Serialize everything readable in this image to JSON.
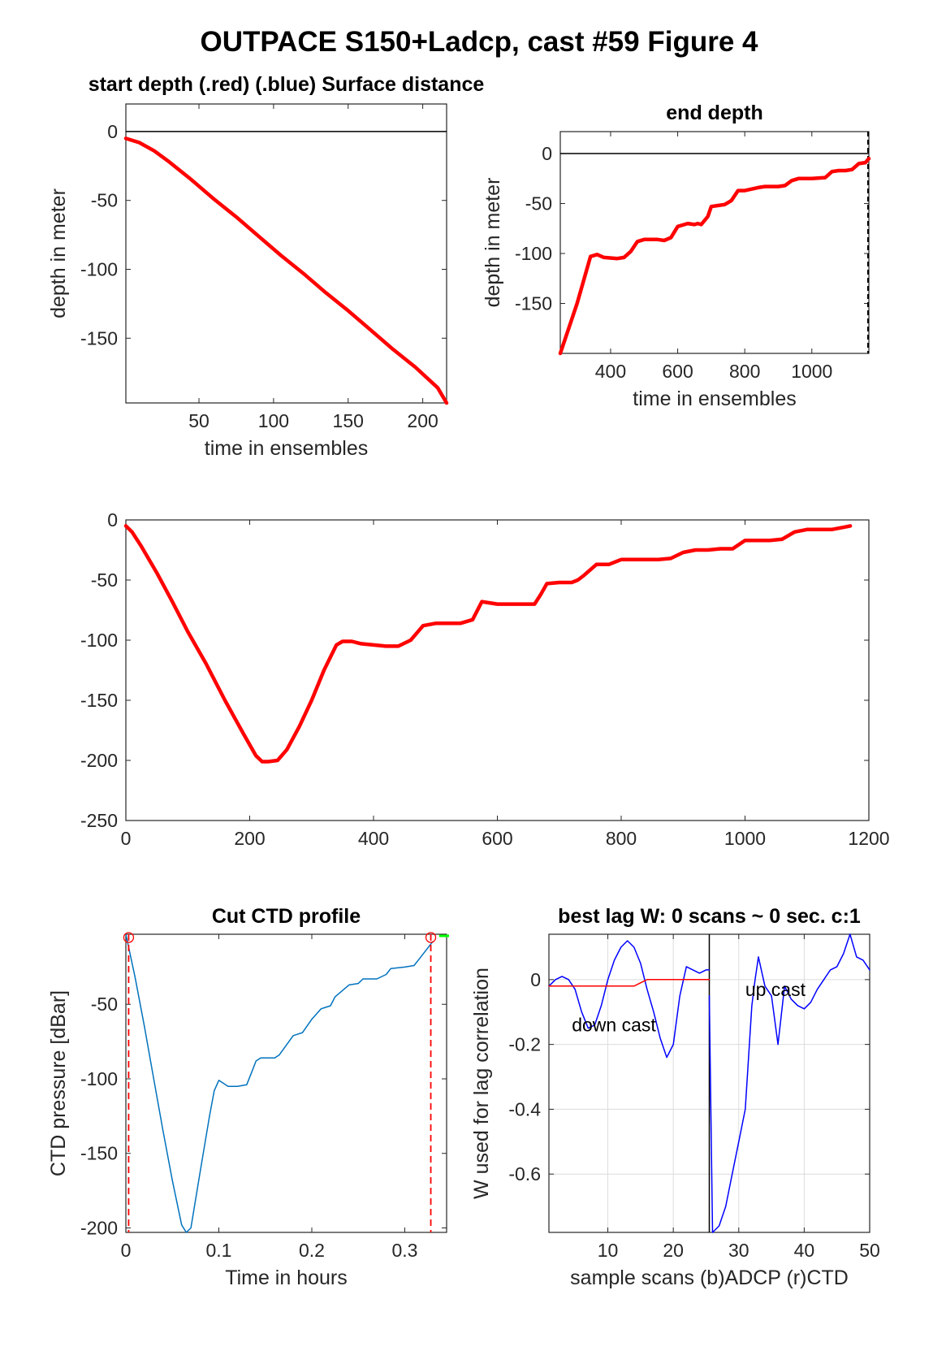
{
  "figure": {
    "title": "OUTPACE S150+Ladcp, cast #59   Figure 4"
  },
  "colors": {
    "red": "#ff0000",
    "blue": "#0000ff",
    "ctd": "#0072bd",
    "green": "#00ff00",
    "grid": "#dcdcdc"
  },
  "chart_data": [
    {
      "id": "start",
      "type": "line",
      "title": "start depth (.red) (.blue) Surface distance",
      "xlabel": "time in ensembles",
      "ylabel": "depth in meter",
      "xlim": [
        1,
        216
      ],
      "ylim": [
        -197,
        20
      ],
      "xticks": [
        50,
        100,
        150,
        200
      ],
      "yticks": [
        0,
        -50,
        -100,
        -150
      ],
      "grid": false,
      "ref_line_y": 0,
      "series": [
        {
          "color": "red",
          "x": [
            1,
            10,
            20,
            30,
            45,
            60,
            75,
            90,
            105,
            120,
            135,
            150,
            165,
            180,
            195,
            210,
            216
          ],
          "y": [
            -5,
            -8,
            -14,
            -22,
            -35,
            -49,
            -62,
            -76,
            -90,
            -103,
            -117,
            -130,
            -144,
            -158,
            -171,
            -186,
            -197
          ]
        }
      ]
    },
    {
      "id": "end",
      "type": "line",
      "title": "end depth",
      "xlabel": "time in ensembles",
      "ylabel": "depth in meter",
      "xlim": [
        250,
        1170
      ],
      "ylim": [
        -200,
        22
      ],
      "xticks": [
        400,
        600,
        800,
        1000
      ],
      "yticks": [
        0,
        -50,
        -100,
        -150
      ],
      "grid": false,
      "ref_line_y": 0,
      "right_dashed": true,
      "series": [
        {
          "color": "red",
          "x": [
            250,
            300,
            340,
            360,
            380,
            420,
            440,
            460,
            480,
            500,
            520,
            540,
            560,
            580,
            600,
            630,
            650,
            660,
            670,
            690,
            700,
            720,
            740,
            760,
            780,
            800,
            840,
            860,
            880,
            900,
            920,
            940,
            960,
            980,
            1000,
            1040,
            1060,
            1080,
            1100,
            1120,
            1140,
            1160,
            1170
          ],
          "y": [
            -200,
            -150,
            -103,
            -101,
            -104,
            -105,
            -104,
            -98,
            -88,
            -86,
            -86,
            -86,
            -87,
            -84,
            -73,
            -70,
            -71,
            -70,
            -71,
            -63,
            -53,
            -52,
            -51,
            -47,
            -37,
            -37,
            -34,
            -33,
            -33,
            -33,
            -32,
            -27,
            -25,
            -25,
            -25,
            -24,
            -18,
            -17,
            -17,
            -16,
            -10,
            -9,
            -5
          ]
        }
      ]
    },
    {
      "id": "full",
      "type": "line",
      "title": "",
      "xlabel": "",
      "ylabel": "",
      "xlim": [
        0,
        1200
      ],
      "ylim": [
        -250,
        0
      ],
      "xticks": [
        0,
        200,
        400,
        600,
        800,
        1000,
        1200
      ],
      "yticks": [
        0,
        -50,
        -100,
        -150,
        -200,
        -250
      ],
      "grid": false,
      "series": [
        {
          "color": "red",
          "x": [
            0,
            10,
            25,
            50,
            75,
            100,
            130,
            160,
            190,
            210,
            220,
            230,
            245,
            260,
            280,
            300,
            320,
            340,
            350,
            365,
            380,
            400,
            420,
            440,
            460,
            480,
            500,
            520,
            540,
            560,
            575,
            600,
            620,
            640,
            660,
            670,
            680,
            700,
            720,
            730,
            740,
            760,
            780,
            800,
            840,
            860,
            880,
            900,
            920,
            940,
            960,
            980,
            1000,
            1040,
            1060,
            1080,
            1100,
            1120,
            1140,
            1160,
            1170
          ],
          "y": [
            -5,
            -10,
            -22,
            -44,
            -68,
            -93,
            -120,
            -150,
            -178,
            -196,
            -201,
            -201,
            -200,
            -191,
            -172,
            -150,
            -125,
            -104,
            -101,
            -101,
            -103,
            -104,
            -105,
            -105,
            -100,
            -88,
            -86,
            -86,
            -86,
            -83,
            -68,
            -70,
            -70,
            -70,
            -70,
            -62,
            -53,
            -52,
            -52,
            -50,
            -46,
            -37,
            -37,
            -33,
            -33,
            -33,
            -32,
            -27,
            -25,
            -25,
            -24,
            -24,
            -17,
            -17,
            -16,
            -10,
            -8,
            -8,
            -8,
            -6,
            -5
          ]
        }
      ]
    },
    {
      "id": "ctd",
      "type": "line",
      "title": "Cut CTD profile",
      "xlabel": "Time in hours",
      "ylabel": "CTD pressure [dBar]",
      "xlim": [
        0,
        0.345
      ],
      "ylim": [
        -203,
        -3
      ],
      "xticks": [
        0,
        0.1,
        0.2,
        0.3
      ],
      "xtick_labels": [
        "0",
        "0.1",
        "0.2",
        "0.3"
      ],
      "yticks": [
        -50,
        -100,
        -150,
        -200
      ],
      "grid": false,
      "cut_start_x": 0.003,
      "cut_end_x": 0.328,
      "series": [
        {
          "color": "ctd",
          "x": [
            0,
            0.01,
            0.02,
            0.03,
            0.04,
            0.05,
            0.06,
            0.065,
            0.07,
            0.08,
            0.09,
            0.095,
            0.1,
            0.105,
            0.11,
            0.12,
            0.13,
            0.135,
            0.14,
            0.145,
            0.16,
            0.165,
            0.18,
            0.185,
            0.19,
            0.2,
            0.21,
            0.215,
            0.22,
            0.225,
            0.24,
            0.25,
            0.255,
            0.26,
            0.27,
            0.28,
            0.285,
            0.3,
            0.31,
            0.315,
            0.33
          ],
          "y": [
            -3,
            -32,
            -65,
            -100,
            -135,
            -168,
            -198,
            -203,
            -200,
            -162,
            -125,
            -108,
            -101,
            -103,
            -105,
            -105,
            -104,
            -96,
            -88,
            -86,
            -86,
            -84,
            -71,
            -70,
            -69,
            -60,
            -53,
            -52,
            -51,
            -45,
            -37,
            -36,
            -33,
            -33,
            -33,
            -30,
            -26,
            -25,
            -24,
            -20,
            -8
          ]
        }
      ]
    },
    {
      "id": "lag",
      "type": "line",
      "title": "best lag W: 0 scans ~ 0 sec.  c:1",
      "xlabel": "sample scans (b)ADCP (r)CTD",
      "ylabel": "W used for lag correlation",
      "xlim": [
        1,
        50
      ],
      "ylim": [
        -0.78,
        0.14
      ],
      "xticks": [
        10,
        20,
        30,
        40,
        50
      ],
      "yticks": [
        0,
        -0.2,
        -0.4,
        -0.6
      ],
      "ytick_labels": [
        "0",
        "-0.2",
        "-0.4",
        "-0.6"
      ],
      "grid": true,
      "divider_x": 25.5,
      "annotations": [
        {
          "text": "down cast",
          "x": 4.5,
          "y": -0.16
        },
        {
          "text": "up cast",
          "x": 31,
          "y": -0.05
        }
      ],
      "series": [
        {
          "color": "blue",
          "x": [
            1,
            2,
            3,
            4,
            5,
            6,
            7,
            8,
            9,
            10,
            11,
            12,
            13,
            14,
            15,
            16,
            17,
            18,
            19,
            20,
            21,
            22,
            23,
            24,
            25,
            25.5
          ],
          "y": [
            -0.02,
            0.0,
            0.01,
            0.0,
            -0.03,
            -0.1,
            -0.15,
            -0.14,
            -0.08,
            0.0,
            0.06,
            0.1,
            0.12,
            0.1,
            0.05,
            -0.03,
            -0.1,
            -0.18,
            -0.24,
            -0.2,
            -0.05,
            0.04,
            0.03,
            0.02,
            0.03,
            0.03
          ]
        },
        {
          "color": "blue",
          "x": [
            25.5,
            26,
            27,
            28,
            29,
            30,
            31,
            32,
            32.5,
            33,
            34,
            35,
            36,
            37,
            38,
            39,
            40,
            41,
            42,
            43,
            44,
            45,
            46,
            47,
            48,
            49,
            50
          ],
          "y": [
            -0.05,
            -0.78,
            -0.76,
            -0.7,
            -0.6,
            -0.5,
            -0.4,
            -0.08,
            0.0,
            0.07,
            -0.02,
            -0.05,
            -0.2,
            -0.02,
            -0.06,
            -0.08,
            -0.09,
            -0.07,
            -0.03,
            0.0,
            0.03,
            0.04,
            0.08,
            0.14,
            0.07,
            0.06,
            0.03
          ]
        },
        {
          "color": "red",
          "x": [
            1,
            14,
            16,
            25.5
          ],
          "y": [
            -0.02,
            -0.02,
            0.0,
            0.0
          ]
        }
      ]
    }
  ]
}
